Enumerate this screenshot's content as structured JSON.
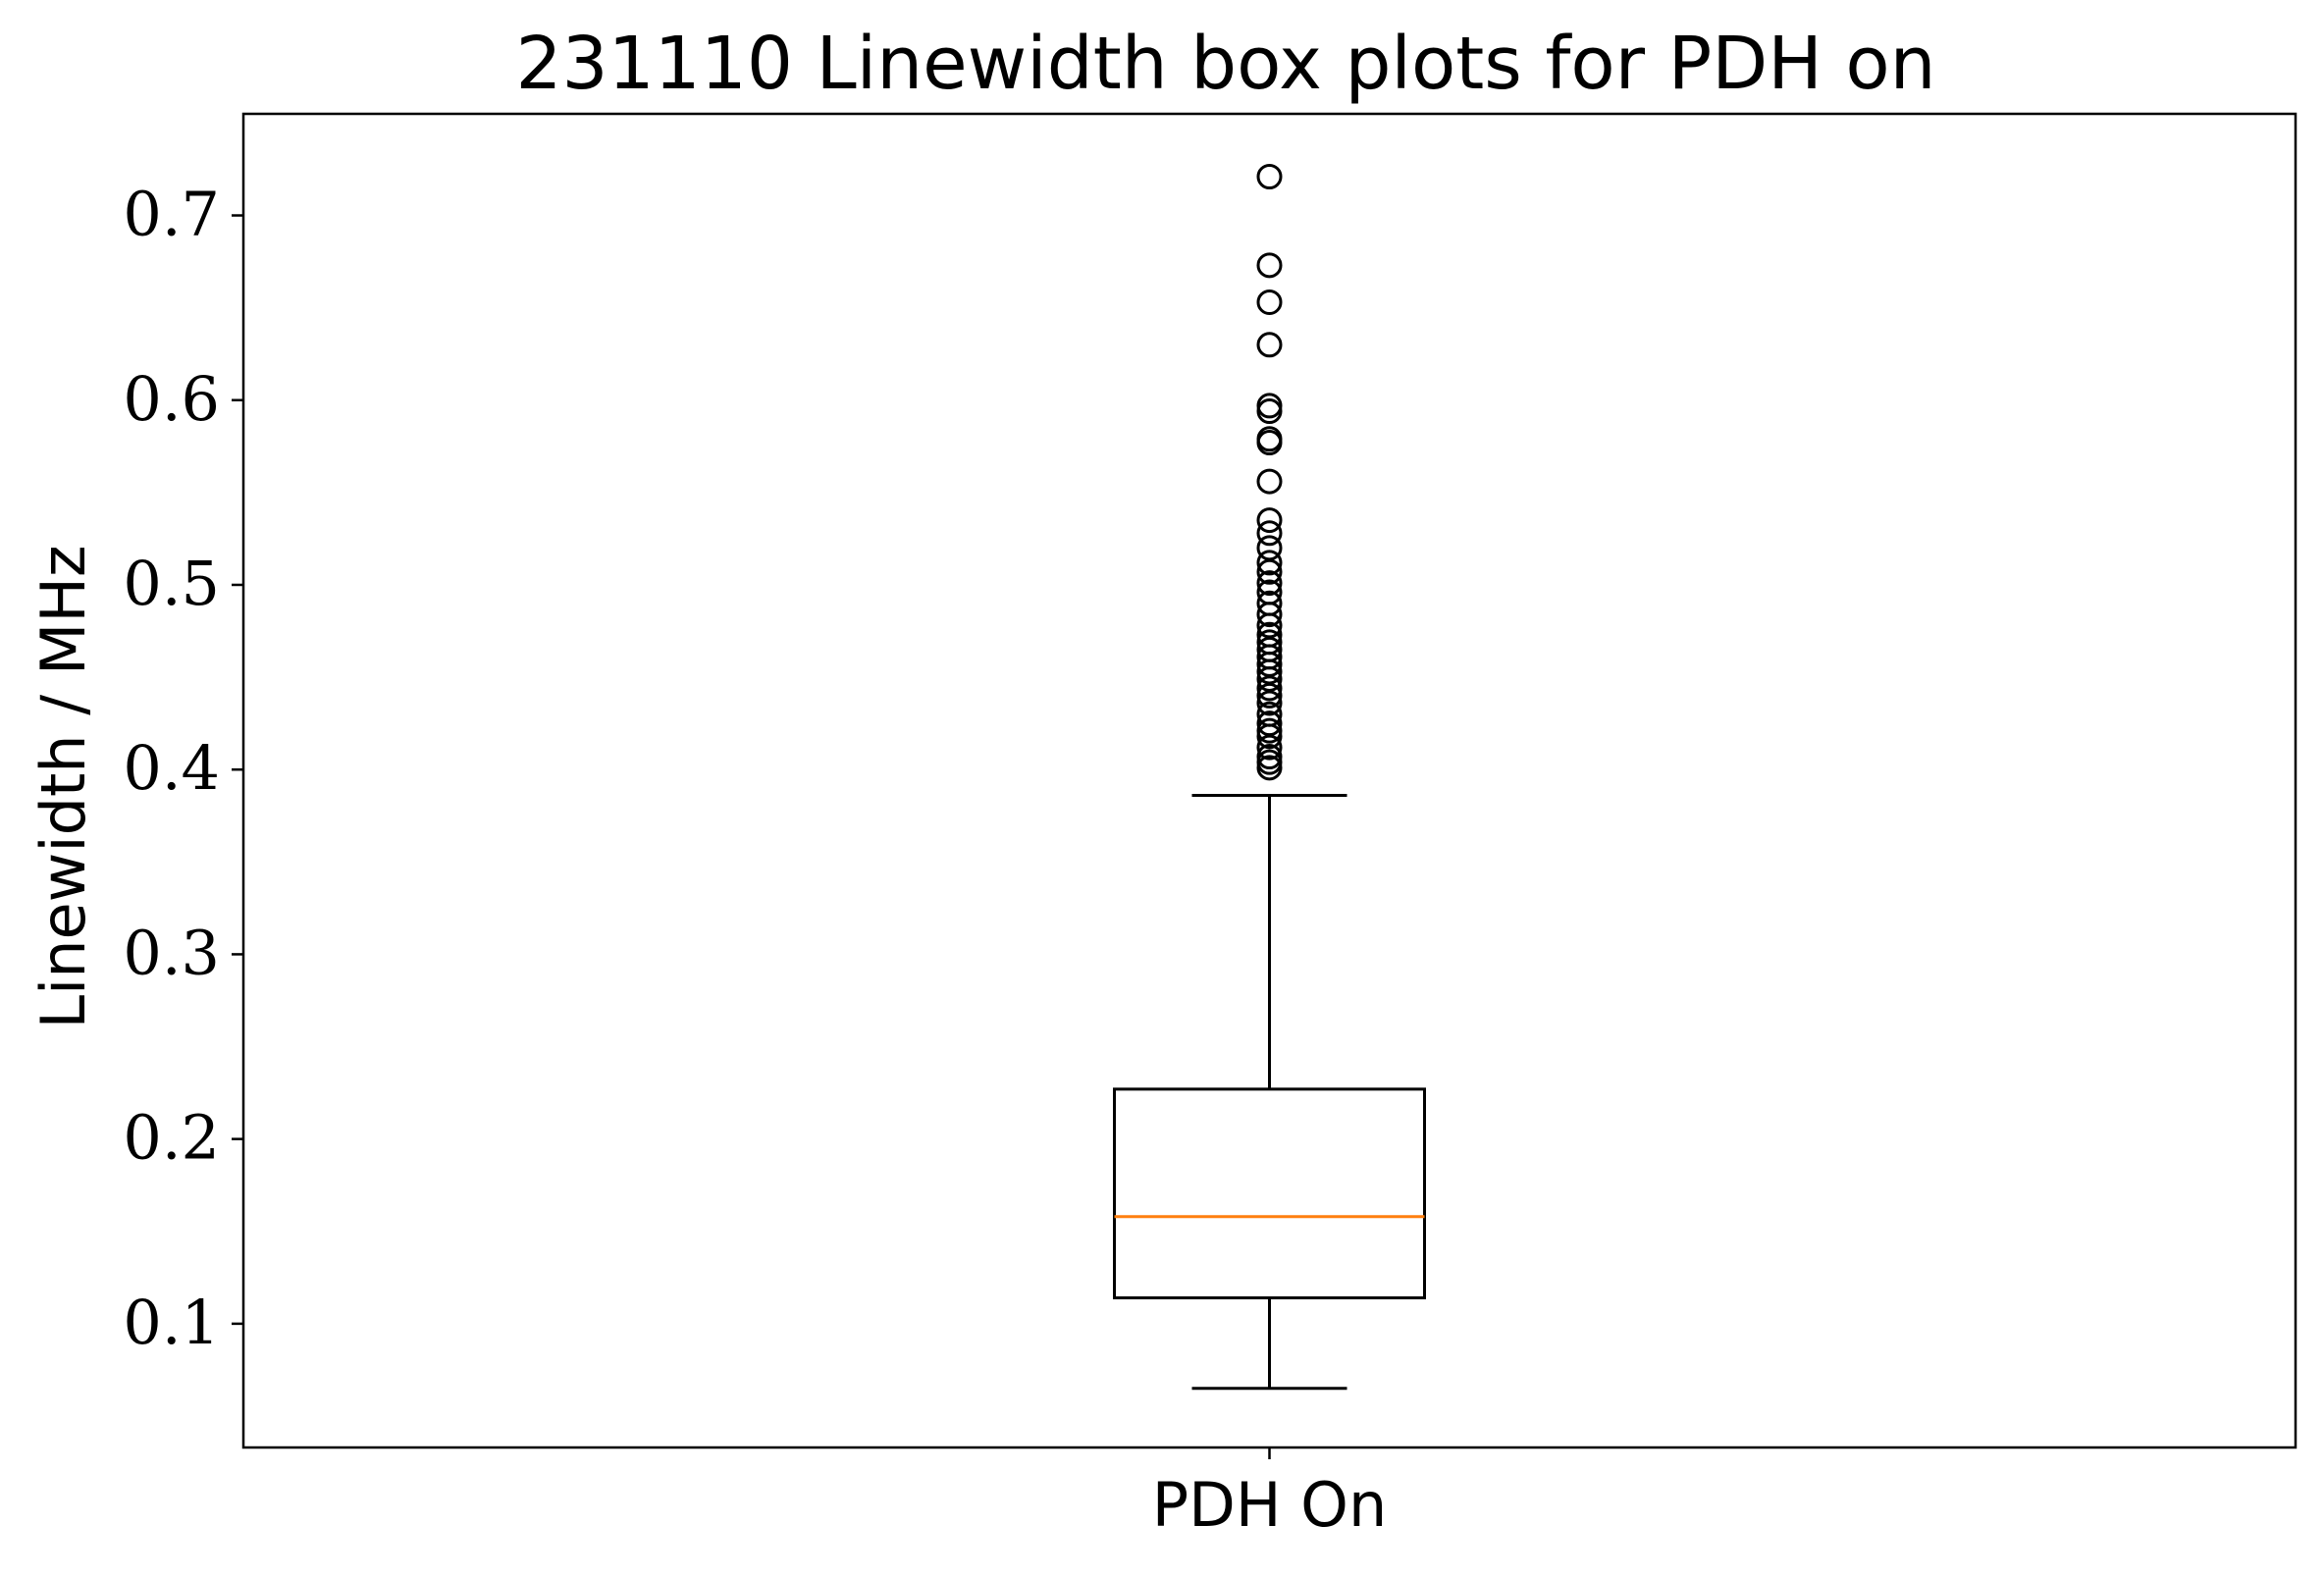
{
  "chart_data": {
    "type": "box",
    "title": "231110 Linewidth box plots for PDH on",
    "xlabel": "",
    "ylabel": "Linewidth / MHz",
    "categories": [
      "PDH On"
    ],
    "ylim": [
      0.033,
      0.755
    ],
    "yticks": [
      0.1,
      0.2,
      0.3,
      0.4,
      0.5,
      0.6,
      0.7
    ],
    "ytick_labels": [
      "0.1",
      "0.2",
      "0.3",
      "0.4",
      "0.5",
      "0.6",
      "0.7"
    ],
    "grid": false,
    "boxes": [
      {
        "category": "PDH On",
        "whisker_low": 0.065,
        "q1": 0.114,
        "median": 0.158,
        "q3": 0.227,
        "whisker_high": 0.386,
        "outliers": [
          0.401,
          0.404,
          0.407,
          0.412,
          0.418,
          0.421,
          0.425,
          0.43,
          0.436,
          0.44,
          0.444,
          0.449,
          0.453,
          0.457,
          0.461,
          0.465,
          0.469,
          0.473,
          0.478,
          0.484,
          0.49,
          0.496,
          0.501,
          0.507,
          0.512,
          0.52,
          0.528,
          0.535,
          0.556,
          0.577,
          0.579,
          0.594,
          0.597,
          0.63,
          0.653,
          0.673,
          0.721
        ]
      }
    ],
    "colors": {
      "box": "#000000",
      "median": "#ff7f0e",
      "whisker": "#000000",
      "flier": "#000000"
    }
  }
}
